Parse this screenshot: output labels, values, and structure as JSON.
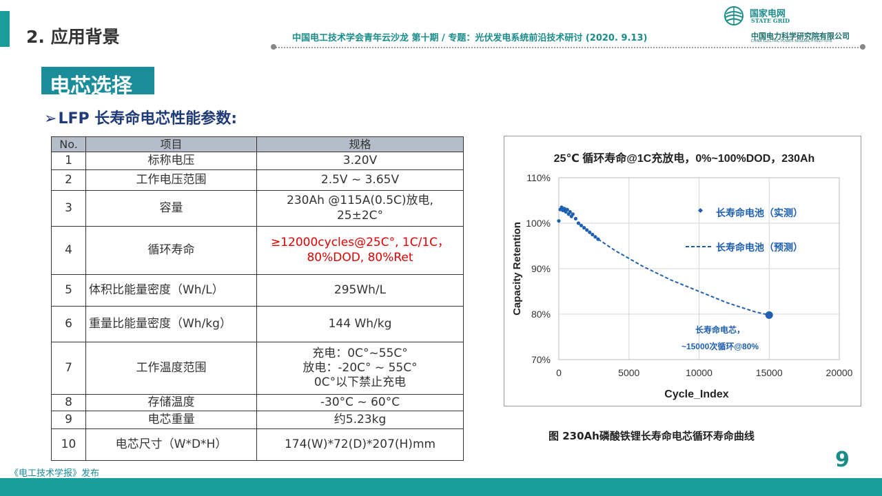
{
  "header": {
    "section_title": "2. 应用背景",
    "conference": "中国电工技术学会青年云沙龙  第十期 / 专题：光伏发电系统前沿技术研讨 (2020. 9.13)",
    "logo_cn": "国家电网",
    "logo_en": "STATE GRID",
    "institute_cn": "中国电力科学研究院有限公司",
    "institute_en": "CHINA ELECTRIC POWER RESEARCH INSTITUTE"
  },
  "sub_heading": "电芯选择",
  "bullet": {
    "arrow": "➢",
    "text": "LFP 长寿命电芯性能参数:"
  },
  "table": {
    "headers": [
      "No.",
      "项目",
      "规格"
    ],
    "rows": [
      {
        "no": "1",
        "item": "标称电压",
        "spec": [
          "3.20V"
        ]
      },
      {
        "no": "2",
        "item": "工作电压范围",
        "spec": [
          "2.5V ~ 3.65V"
        ]
      },
      {
        "no": "3",
        "item": "容量",
        "spec": [
          "230Ah @115A(0.5C)放电,",
          "25±2C°"
        ]
      },
      {
        "no": "4",
        "item": "循环寿命",
        "spec": [
          "≥12000cycles@25C°, 1C/1C，",
          "80%DOD, 80%Ret"
        ],
        "highlight": "#e00000"
      },
      {
        "no": "5",
        "item": "体积比能量密度（Wh/L）",
        "spec": [
          "295Wh/L"
        ]
      },
      {
        "no": "6",
        "item": "重量比能量密度（Wh/kg）",
        "spec": [
          "144 Wh/kg"
        ]
      },
      {
        "no": "7",
        "item": "工作温度范围",
        "spec": [
          "充电：0C°~55C°",
          "放电：-20C° ~ 55C°",
          "0C°以下禁止充电"
        ]
      },
      {
        "no": "8",
        "item": "存储温度",
        "spec": [
          "-30°C ~ 60°C"
        ]
      },
      {
        "no": "9",
        "item": "电芯重量",
        "spec": [
          "约5.23kg"
        ]
      },
      {
        "no": "10",
        "item": "电芯尺寸（W*D*H）",
        "spec": [
          "174(W)*72(D)*207(H)mm"
        ]
      }
    ]
  },
  "chart_data": {
    "type": "scatter",
    "title": "25℃ 循环寿命@1C充放电，0%~100%DOD，230Ah",
    "xlabel": "Cycle_Index",
    "ylabel": "Capacity Retention",
    "xlim": [
      0,
      20000
    ],
    "ylim": [
      0.7,
      1.1
    ],
    "x_ticks": [
      "0",
      "5000",
      "10000",
      "15000",
      "20000"
    ],
    "y_ticks": [
      "70%",
      "80%",
      "90%",
      "100%",
      "110%"
    ],
    "grid": true,
    "legend_position": "top-right",
    "series": [
      {
        "name": "长寿命电池（实测）",
        "style": "markers",
        "x": [
          0,
          100,
          200,
          300,
          400,
          500,
          600,
          700,
          800,
          900,
          1000,
          1200,
          1400,
          1600,
          1800,
          2000,
          2200,
          2400,
          2600,
          2800
        ],
        "y": [
          1.005,
          1.03,
          1.035,
          1.028,
          1.032,
          1.025,
          1.03,
          1.02,
          1.025,
          1.015,
          1.02,
          1.01,
          1.0,
          0.995,
          0.99,
          0.985,
          0.98,
          0.975,
          0.97,
          0.965
        ]
      },
      {
        "name": "长寿命电池（预测）",
        "style": "dashed-line",
        "x": [
          2800,
          4000,
          6000,
          8000,
          10000,
          12000,
          14000,
          15000
        ],
        "y": [
          0.965,
          0.94,
          0.905,
          0.875,
          0.85,
          0.825,
          0.805,
          0.798
        ]
      }
    ],
    "endpoint": {
      "x": 15000,
      "y": 0.798
    },
    "annotation": [
      "长寿命电芯，",
      "~15000次循环@80%"
    ]
  },
  "caption": "图  230Ah磷酸铁锂长寿命电芯循环寿命曲线",
  "page_number": "9",
  "publisher": "《电工技术学报》发布",
  "colors": {
    "accent": "#1a9c9a",
    "series": "#1f5fb0",
    "highlight": "#e00000"
  }
}
